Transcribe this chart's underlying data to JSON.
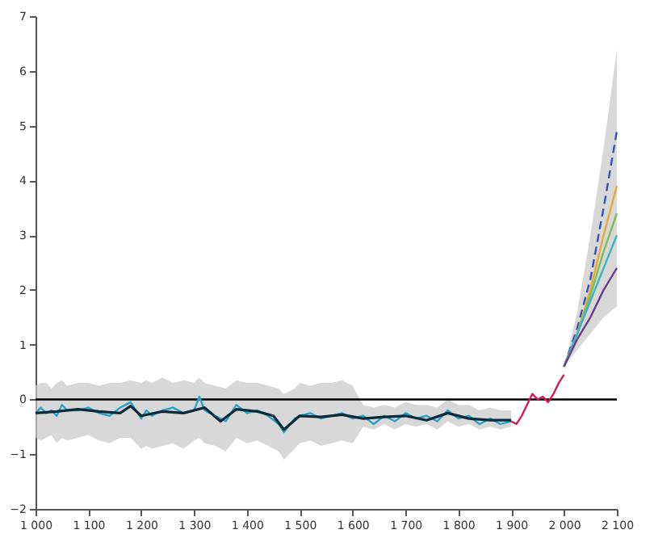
{
  "chart_data": {
    "type": "line",
    "xlim": [
      1000,
      2100
    ],
    "ylim": [
      -2,
      7
    ],
    "xticks": [
      {
        "value": 1000,
        "label": "1 000"
      },
      {
        "value": 1100,
        "label": "1 100"
      },
      {
        "value": 1200,
        "label": "1 200"
      },
      {
        "value": 1300,
        "label": "1 300"
      },
      {
        "value": 1400,
        "label": "1 400"
      },
      {
        "value": 1500,
        "label": "1 500"
      },
      {
        "value": 1600,
        "label": "1 600"
      },
      {
        "value": 1700,
        "label": "1 700"
      },
      {
        "value": 1800,
        "label": "1 800"
      },
      {
        "value": 1900,
        "label": "1 900"
      },
      {
        "value": 2000,
        "label": "2 000"
      },
      {
        "value": 2100,
        "label": "2 100"
      }
    ],
    "yticks": [
      -2,
      -1,
      0,
      1,
      2,
      3,
      4,
      5,
      6,
      7
    ],
    "grid": false,
    "marker": "none",
    "ref_lines": [
      {
        "axis": "y",
        "value": 0,
        "color": "#000000"
      }
    ],
    "series": [
      {
        "color": "#2aa3c8",
        "x": [
          1000,
          1010,
          1020,
          1030,
          1040,
          1050,
          1060,
          1080,
          1100,
          1120,
          1140,
          1160,
          1180,
          1200,
          1210,
          1220,
          1240,
          1260,
          1280,
          1300,
          1310,
          1320,
          1340,
          1360,
          1380,
          1400,
          1420,
          1440,
          1460,
          1470,
          1490,
          1500,
          1520,
          1540,
          1560,
          1580,
          1600,
          1620,
          1640,
          1660,
          1680,
          1700,
          1720,
          1740,
          1760,
          1780,
          1800,
          1820,
          1840,
          1860,
          1880,
          1900
        ],
        "values": [
          -0.25,
          -0.15,
          -0.25,
          -0.2,
          -0.3,
          -0.1,
          -0.2,
          -0.2,
          -0.15,
          -0.25,
          -0.3,
          -0.15,
          -0.05,
          -0.35,
          -0.2,
          -0.3,
          -0.2,
          -0.15,
          -0.25,
          -0.2,
          0.05,
          -0.2,
          -0.3,
          -0.4,
          -0.1,
          -0.25,
          -0.2,
          -0.3,
          -0.45,
          -0.6,
          -0.35,
          -0.3,
          -0.25,
          -0.35,
          -0.3,
          -0.25,
          -0.35,
          -0.3,
          -0.45,
          -0.3,
          -0.4,
          -0.25,
          -0.35,
          -0.3,
          -0.4,
          -0.2,
          -0.35,
          -0.3,
          -0.45,
          -0.35,
          -0.45,
          -0.4
        ],
        "lower": [
          -0.7,
          -0.75,
          -0.7,
          -0.65,
          -0.8,
          -0.7,
          -0.75,
          -0.7,
          -0.65,
          -0.75,
          -0.8,
          -0.7,
          -0.7,
          -0.9,
          -0.85,
          -0.9,
          -0.85,
          -0.8,
          -0.9,
          -0.75,
          -0.7,
          -0.8,
          -0.85,
          -0.95,
          -0.7,
          -0.8,
          -0.75,
          -0.85,
          -0.95,
          -1.1,
          -0.9,
          -0.8,
          -0.75,
          -0.85,
          -0.8,
          -0.75,
          -0.8,
          -0.5,
          -0.55,
          -0.45,
          -0.55,
          -0.45,
          -0.5,
          -0.45,
          -0.55,
          -0.4,
          -0.5,
          -0.45,
          -0.55,
          -0.5,
          -0.55,
          -0.5
        ],
        "upper": [
          0.25,
          0.3,
          0.3,
          0.2,
          0.3,
          0.35,
          0.25,
          0.3,
          0.3,
          0.25,
          0.3,
          0.3,
          0.35,
          0.3,
          0.35,
          0.3,
          0.4,
          0.3,
          0.35,
          0.3,
          0.4,
          0.3,
          0.25,
          0.2,
          0.35,
          0.3,
          0.3,
          0.25,
          0.2,
          0.1,
          0.2,
          0.3,
          0.25,
          0.3,
          0.3,
          0.35,
          0.25,
          -0.1,
          -0.15,
          -0.1,
          -0.15,
          -0.05,
          -0.1,
          -0.1,
          -0.15,
          0.0,
          -0.1,
          -0.1,
          -0.2,
          -0.15,
          -0.2,
          -0.2
        ]
      },
      {
        "color": "#0b2a3a",
        "x": [
          1000,
          1040,
          1080,
          1120,
          1160,
          1180,
          1200,
          1240,
          1280,
          1320,
          1350,
          1380,
          1420,
          1450,
          1470,
          1500,
          1540,
          1580,
          1620,
          1660,
          1700,
          1740,
          1780,
          1820,
          1860,
          1900
        ],
        "values": [
          -0.25,
          -0.22,
          -0.18,
          -0.22,
          -0.25,
          -0.12,
          -0.3,
          -0.22,
          -0.25,
          -0.15,
          -0.4,
          -0.18,
          -0.22,
          -0.3,
          -0.55,
          -0.3,
          -0.32,
          -0.28,
          -0.35,
          -0.32,
          -0.3,
          -0.38,
          -0.25,
          -0.35,
          -0.38,
          -0.38
        ]
      },
      {
        "color": "#d6195a",
        "x": [
          1900,
          1910,
          1920,
          1930,
          1940,
          1950,
          1960,
          1970,
          1980,
          1990,
          2000
        ],
        "values": [
          -0.4,
          -0.45,
          -0.3,
          -0.1,
          0.1,
          0.0,
          0.05,
          -0.05,
          0.1,
          0.3,
          0.45
        ]
      },
      {
        "color": "#3b4fb8",
        "line_style": "dashed",
        "x": [
          2000,
          2025,
          2050,
          2075,
          2100
        ],
        "values": [
          0.6,
          1.3,
          2.2,
          3.5,
          4.9
        ],
        "lower": [
          0.6,
          0.9,
          1.2,
          1.5,
          1.7
        ],
        "upper": [
          0.6,
          1.6,
          3.0,
          4.6,
          6.4
        ]
      },
      {
        "color": "#e8a93a",
        "x": [
          2000,
          2025,
          2050,
          2075,
          2100
        ],
        "values": [
          0.6,
          1.2,
          2.0,
          3.0,
          3.9
        ]
      },
      {
        "color": "#7cbf5a",
        "x": [
          2000,
          2025,
          2050,
          2075,
          2100
        ],
        "values": [
          0.6,
          1.2,
          1.9,
          2.7,
          3.4
        ]
      },
      {
        "color": "#3fb3c0",
        "x": [
          2000,
          2025,
          2050,
          2075,
          2100
        ],
        "values": [
          0.6,
          1.2,
          1.8,
          2.4,
          3.0
        ]
      },
      {
        "color": "#6a3d8c",
        "x": [
          2000,
          2025,
          2050,
          2075,
          2100
        ],
        "values": [
          0.6,
          1.1,
          1.5,
          2.0,
          2.4
        ]
      }
    ]
  }
}
